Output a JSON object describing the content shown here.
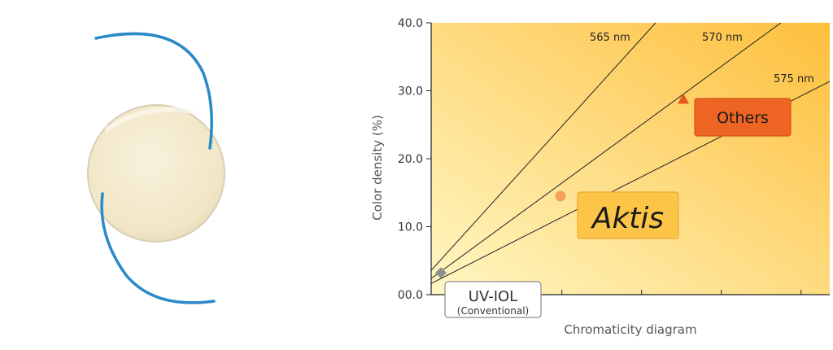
{
  "lens_figure": {
    "icon": "intraocular-lens-icon",
    "optic_color": "#f3ead0",
    "haptic_color": "#2a8ac8"
  },
  "chart_data": {
    "type": "scatter",
    "title": "",
    "xlabel": "Chromaticity diagram",
    "ylabel": "Color density (%)",
    "ylim": [
      0,
      40
    ],
    "y_ticks": [
      "00.0",
      "10.0",
      "20.0",
      "30.0",
      "40.0"
    ],
    "x_tick_count": 5,
    "grid": false,
    "background_gradient": [
      "#fff7c4",
      "#fdbf3c"
    ],
    "reference_lines": [
      {
        "label": "565 nm"
      },
      {
        "label": "570 nm"
      },
      {
        "label": "575 nm"
      }
    ],
    "points": [
      {
        "name": "UV-IOL",
        "sublabel": "(Conventional)",
        "y": 3.2,
        "marker": "diamond",
        "color": "#8f8f8f"
      },
      {
        "name": "Aktis",
        "y": 14.5,
        "marker": "circle",
        "color": "#f4a05a"
      },
      {
        "name": "Others",
        "y": 28.8,
        "marker": "triangle",
        "color": "#e9581c"
      }
    ]
  }
}
